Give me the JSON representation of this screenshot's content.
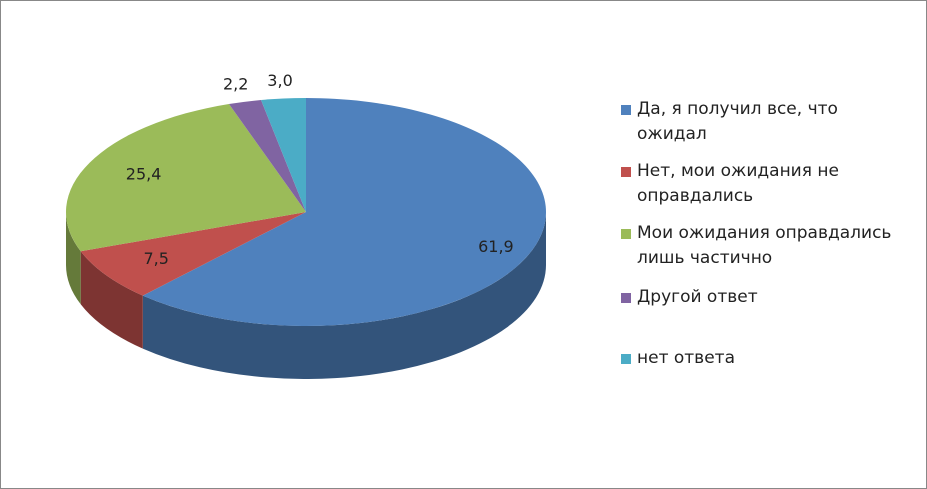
{
  "chart_data": {
    "type": "pie",
    "categories": [
      "Да, я получил все, что ожидал",
      "Нет, мои ожидания не оправдались",
      "Мои ожидания оправдались лишь частично",
      "Другой ответ",
      "нет ответа"
    ],
    "values": [
      61.9,
      7.5,
      25.4,
      2.2,
      3.0
    ],
    "value_labels": [
      "61,9",
      "7,5",
      "25,4",
      "2,2",
      "3,0"
    ],
    "colors": [
      "#4f81bd",
      "#c0504d",
      "#9bbb59",
      "#8064a2",
      "#4bacc6"
    ],
    "legend": "right"
  }
}
